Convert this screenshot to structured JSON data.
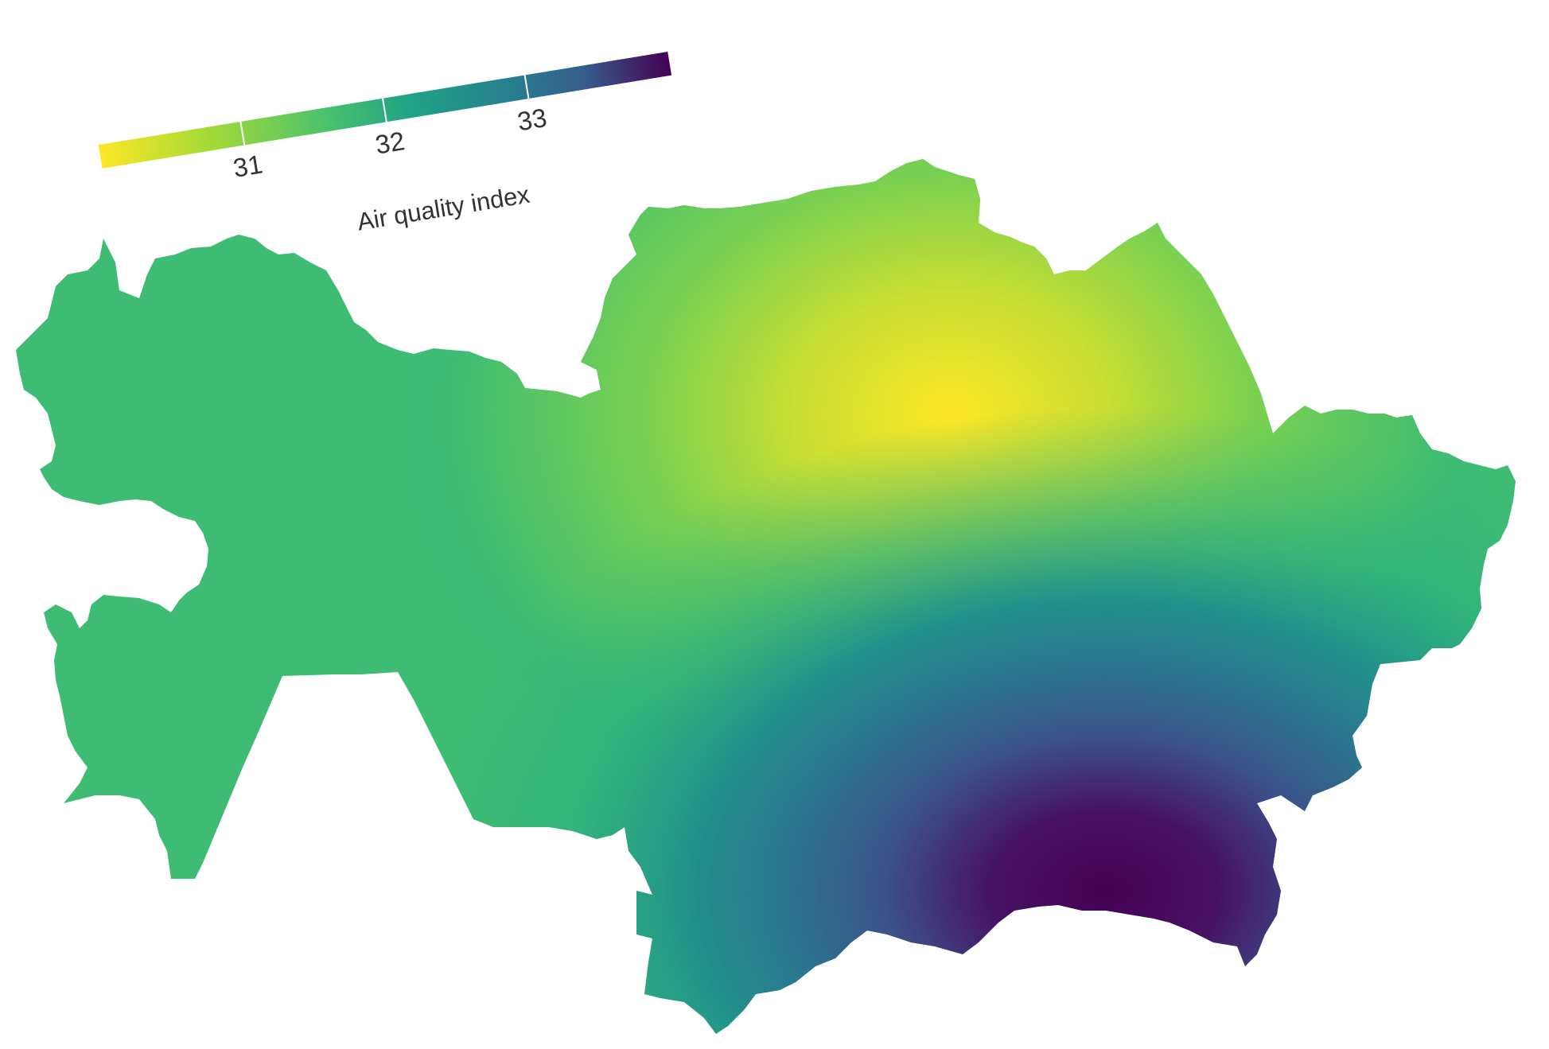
{
  "map": {
    "region": "Kazakhstan",
    "variable": "Air quality index",
    "legend": {
      "title": "Air quality index",
      "ticks": [
        "31",
        "32",
        "33"
      ],
      "scale_min": 30,
      "scale_max": 34,
      "palette": "viridis",
      "colors": [
        "#fde725",
        "#7ad151",
        "#22a884",
        "#2a788e",
        "#414487",
        "#440154"
      ]
    },
    "surface": {
      "high_center_label": "south-east",
      "low_center_label": "north-centre",
      "high_value": 34,
      "low_value": 30
    }
  }
}
